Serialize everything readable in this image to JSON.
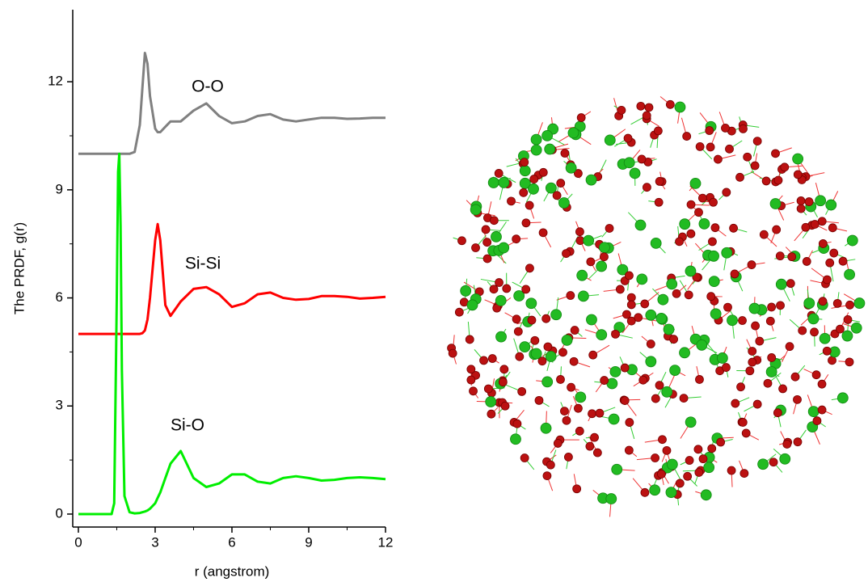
{
  "chart_data": {
    "type": "line",
    "xlabel": "r (angstrom)",
    "ylabel": "The PRDF, g(r)",
    "x": [
      0,
      0.5,
      1.0,
      1.3,
      1.4,
      1.5,
      1.55,
      1.6,
      1.65,
      1.7,
      1.8,
      2.0,
      2.2,
      2.4,
      2.5,
      2.6,
      2.7,
      2.8,
      3.0,
      3.1,
      3.2,
      3.4,
      3.6,
      4.0,
      4.5,
      5.0,
      5.5,
      6.0,
      6.5,
      7.0,
      7.5,
      8.0,
      8.5,
      9.0,
      9.5,
      10.0,
      10.5,
      11.0,
      11.5,
      12.0
    ],
    "series": [
      {
        "color": "#808080",
        "values": [
          10,
          10,
          10,
          10,
          10,
          10,
          10,
          10,
          10,
          10,
          10,
          10,
          10.05,
          10.8,
          11.8,
          12.8,
          12.5,
          11.6,
          10.7,
          10.6,
          10.6,
          10.75,
          10.9,
          10.9,
          11.2,
          11.4,
          11.05,
          10.85,
          10.9,
          11.05,
          11.1,
          10.95,
          10.9,
          10.95,
          11.0,
          11.0,
          10.97,
          10.98,
          11.0,
          11.0
        ]
      },
      {
        "color": "#ff0000",
        "values": [
          5,
          5,
          5,
          5,
          5,
          5,
          5,
          5,
          5,
          5,
          5,
          5,
          5,
          5,
          5.02,
          5.1,
          5.4,
          6.0,
          7.6,
          8.05,
          7.6,
          5.8,
          5.5,
          5.9,
          6.25,
          6.3,
          6.1,
          5.75,
          5.85,
          6.1,
          6.15,
          6.0,
          5.95,
          5.97,
          6.05,
          6.05,
          6.03,
          5.98,
          6.0,
          6.03
        ]
      },
      {
        "color": "#00ee00",
        "values": [
          0,
          0,
          0,
          0,
          0.3,
          6,
          9.5,
          10,
          8,
          4,
          0.5,
          0.05,
          0.02,
          0.03,
          0.05,
          0.07,
          0.1,
          0.15,
          0.3,
          0.45,
          0.6,
          1.0,
          1.4,
          1.75,
          1.0,
          0.75,
          0.85,
          1.1,
          1.1,
          0.9,
          0.85,
          1.0,
          1.05,
          1.0,
          0.93,
          0.95,
          1.0,
          1.02,
          1.0,
          0.97
        ]
      }
    ],
    "annotations": [
      "O-O",
      "Si-Si",
      "Si-O"
    ],
    "xlim": [
      -0.22,
      12
    ],
    "xticks": [
      0,
      3,
      6,
      9,
      12
    ],
    "ylim": [
      -0.36,
      14
    ],
    "yticks": [
      0,
      3,
      6,
      9,
      12
    ]
  }
}
